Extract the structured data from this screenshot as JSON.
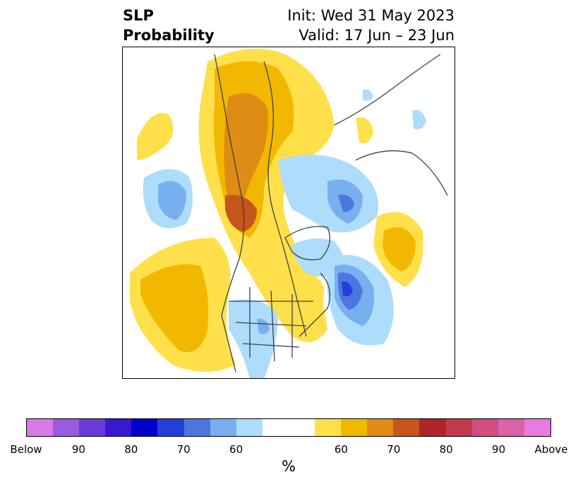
{
  "title": {
    "left_line1": "SLP",
    "left_line2": "Probability",
    "right_line1": "Init: Wed 31 May 2023",
    "right_line2": "Valid: 17 Jun – 23 Jun"
  },
  "colorbar": {
    "unit": "%",
    "colors": [
      "#d87ae8",
      "#9b5be0",
      "#6a3ad8",
      "#3a18d0",
      "#0000cc",
      "#2440d8",
      "#4d76e0",
      "#78b0ef",
      "#aedcfb",
      "#ffffff",
      "#ffe04a",
      "#f2b800",
      "#df8c14",
      "#c6561b",
      "#b02428",
      "#c4384e",
      "#d04e80",
      "#dc62a8",
      "#e87ae0"
    ],
    "white_index": 9,
    "ticks": [
      "Below",
      "90",
      "80",
      "70",
      "60",
      "60",
      "70",
      "80",
      "90",
      "Above"
    ]
  }
}
